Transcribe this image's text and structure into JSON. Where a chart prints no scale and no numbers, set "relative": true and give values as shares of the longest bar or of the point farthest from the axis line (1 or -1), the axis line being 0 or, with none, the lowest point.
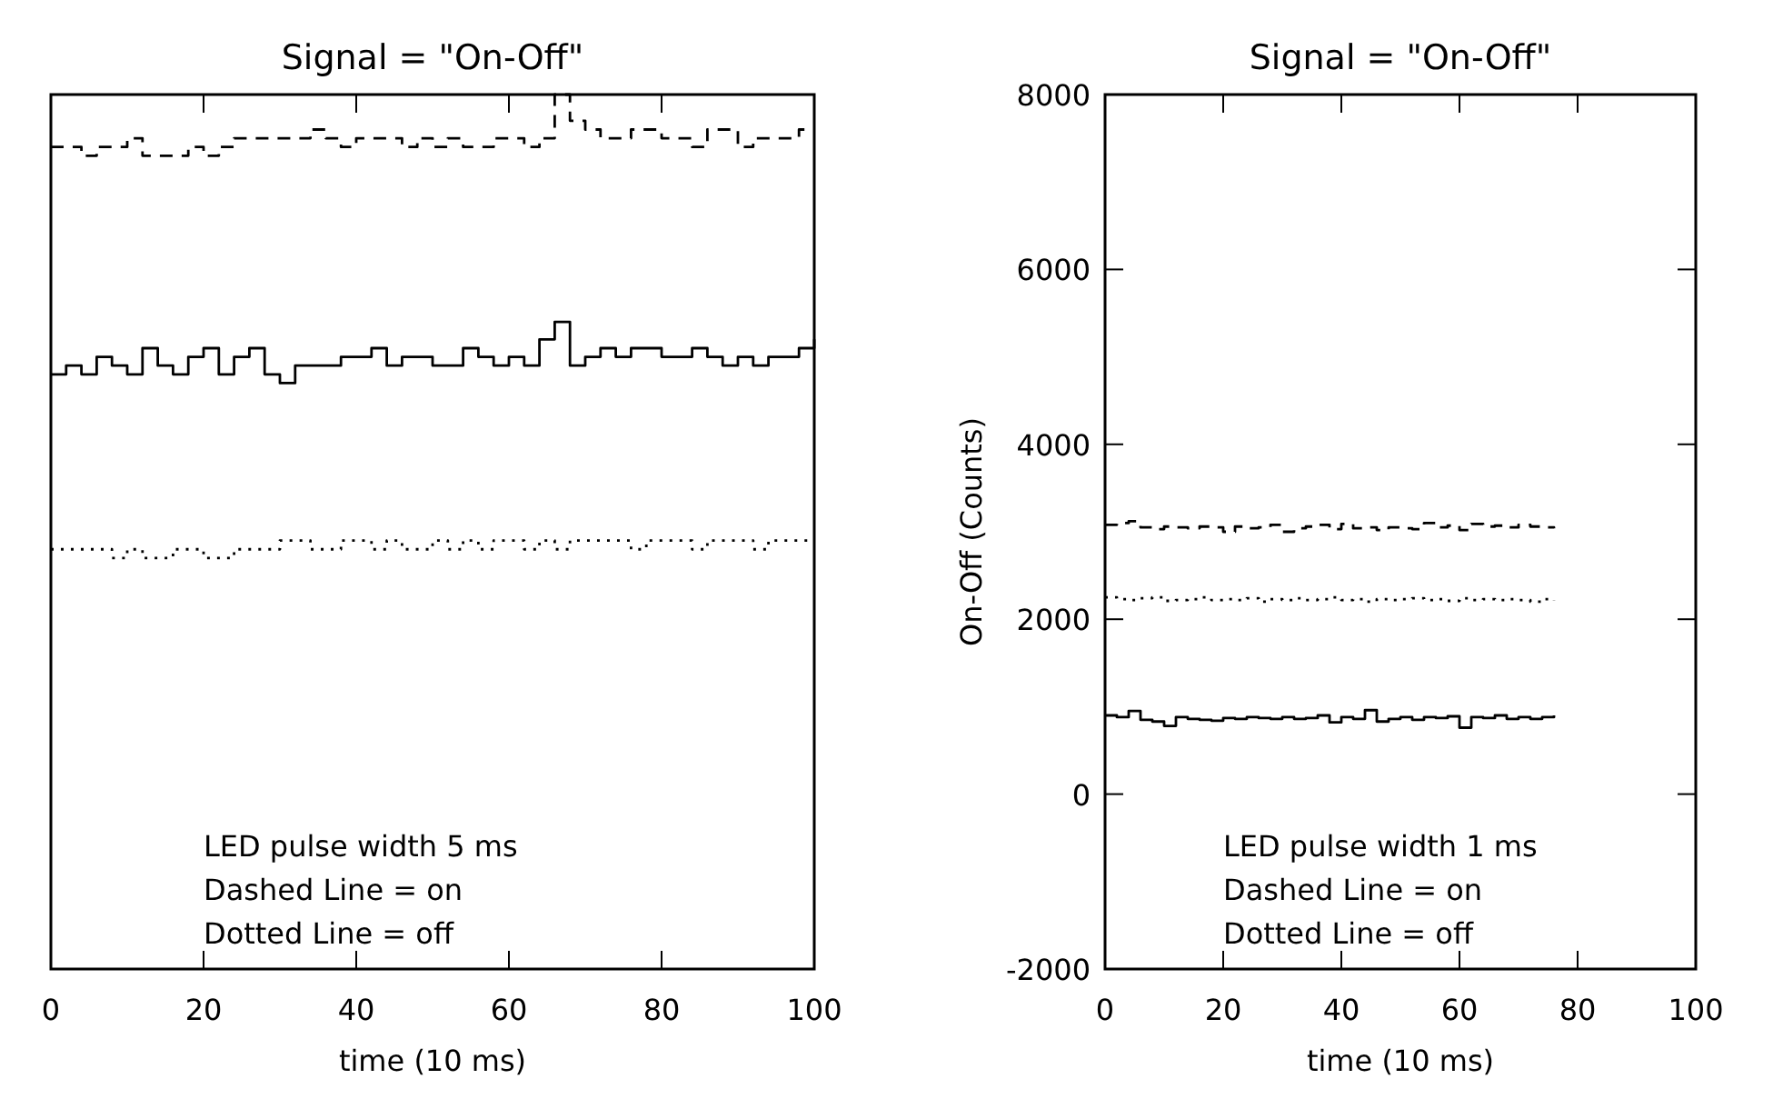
{
  "chart_data": [
    {
      "type": "step",
      "title": "Signal = \"On-Off\"",
      "xlabel": "time (10 ms)",
      "relative": true,
      "xlim": [
        0,
        100
      ],
      "xticks": [
        0,
        20,
        40,
        60,
        80,
        100
      ],
      "tick_labels": "x",
      "x": [
        0,
        2,
        4,
        6,
        8,
        10,
        12,
        14,
        16,
        18,
        20,
        22,
        24,
        26,
        28,
        30,
        32,
        34,
        36,
        38,
        40,
        42,
        44,
        46,
        48,
        50,
        52,
        54,
        56,
        58,
        60,
        62,
        64,
        66,
        68,
        70,
        72,
        74,
        76,
        78,
        80,
        82,
        84,
        86,
        88,
        90,
        92,
        94,
        96,
        98,
        100
      ],
      "series": [
        {
          "color": "#000000",
          "line_style": "dashed",
          "values": [
            0.94,
            0.94,
            0.93,
            0.94,
            0.94,
            0.95,
            0.93,
            0.93,
            0.93,
            0.94,
            0.93,
            0.94,
            0.95,
            0.95,
            0.95,
            0.95,
            0.95,
            0.96,
            0.95,
            0.94,
            0.95,
            0.95,
            0.95,
            0.94,
            0.95,
            0.94,
            0.95,
            0.94,
            0.94,
            0.95,
            0.95,
            0.94,
            0.95,
            1.0,
            0.97,
            0.96,
            0.95,
            0.95,
            0.96,
            0.96,
            0.95,
            0.95,
            0.94,
            0.96,
            0.96,
            0.94,
            0.95,
            0.95,
            0.95,
            0.96,
            0.96
          ]
        },
        {
          "color": "#000000",
          "line_style": "solid",
          "values": [
            0.68,
            0.69,
            0.68,
            0.7,
            0.69,
            0.68,
            0.71,
            0.69,
            0.68,
            0.7,
            0.71,
            0.68,
            0.7,
            0.71,
            0.68,
            0.67,
            0.69,
            0.69,
            0.69,
            0.7,
            0.7,
            0.71,
            0.69,
            0.7,
            0.7,
            0.69,
            0.69,
            0.71,
            0.7,
            0.69,
            0.7,
            0.69,
            0.72,
            0.74,
            0.69,
            0.7,
            0.71,
            0.7,
            0.71,
            0.71,
            0.7,
            0.7,
            0.71,
            0.7,
            0.69,
            0.7,
            0.69,
            0.7,
            0.7,
            0.71,
            0.72
          ]
        },
        {
          "color": "#000000",
          "line_style": "dotted",
          "values": [
            0.48,
            0.48,
            0.48,
            0.48,
            0.47,
            0.48,
            0.47,
            0.47,
            0.48,
            0.48,
            0.47,
            0.47,
            0.48,
            0.48,
            0.48,
            0.49,
            0.49,
            0.48,
            0.48,
            0.49,
            0.49,
            0.48,
            0.49,
            0.48,
            0.48,
            0.49,
            0.48,
            0.49,
            0.48,
            0.49,
            0.49,
            0.48,
            0.49,
            0.48,
            0.49,
            0.49,
            0.49,
            0.49,
            0.48,
            0.49,
            0.49,
            0.49,
            0.48,
            0.49,
            0.49,
            0.49,
            0.48,
            0.49,
            0.49,
            0.49,
            0.49
          ]
        }
      ],
      "annotations": [
        "LED pulse width 5 ms",
        "Dashed Line = on",
        "Dotted Line = off"
      ]
    },
    {
      "type": "step",
      "title": "Signal = \"On-Off\"",
      "xlabel": "time (10 ms)",
      "ylabel": "On-Off (Counts)",
      "xlim": [
        0,
        100
      ],
      "xticks": [
        0,
        20,
        40,
        60,
        80,
        100
      ],
      "ylim": [
        -2000,
        8000
      ],
      "yticks": [
        -2000,
        0,
        2000,
        4000,
        6000,
        8000
      ],
      "x": [
        0,
        2,
        4,
        6,
        8,
        10,
        12,
        14,
        16,
        18,
        20,
        22,
        24,
        26,
        28,
        30,
        32,
        34,
        36,
        38,
        40,
        42,
        44,
        46,
        48,
        50,
        52,
        54,
        56,
        58,
        60,
        62,
        64,
        66,
        68,
        70,
        72,
        74,
        76
      ],
      "series": [
        {
          "color": "#000000",
          "line_style": "dashed",
          "values": [
            3080,
            3100,
            3120,
            3050,
            3030,
            3060,
            3050,
            3040,
            3060,
            3050,
            3000,
            3060,
            3040,
            3050,
            3080,
            3000,
            3040,
            3060,
            3080,
            3030,
            3090,
            3040,
            3050,
            3020,
            3050,
            3040,
            3030,
            3100,
            3050,
            3070,
            3020,
            3090,
            3060,
            3070,
            3050,
            3080,
            3060,
            3050,
            3040
          ]
        },
        {
          "color": "#000000",
          "line_style": "solid",
          "values": [
            900,
            880,
            950,
            850,
            830,
            780,
            880,
            860,
            850,
            840,
            870,
            860,
            880,
            870,
            860,
            880,
            860,
            870,
            900,
            820,
            880,
            860,
            960,
            830,
            860,
            880,
            850,
            880,
            870,
            890,
            760,
            880,
            870,
            900,
            860,
            880,
            860,
            880,
            900
          ]
        },
        {
          "color": "#000000",
          "line_style": "dotted",
          "values": [
            2250,
            2230,
            2220,
            2240,
            2250,
            2210,
            2220,
            2230,
            2250,
            2220,
            2230,
            2220,
            2240,
            2200,
            2230,
            2220,
            2240,
            2220,
            2230,
            2250,
            2220,
            2230,
            2200,
            2230,
            2220,
            2230,
            2240,
            2220,
            2230,
            2210,
            2240,
            2220,
            2230,
            2220,
            2230,
            2220,
            2200,
            2230,
            2210
          ]
        }
      ],
      "annotations": [
        "LED pulse width 1 ms",
        "Dashed Line = on",
        "Dotted Line = off"
      ]
    }
  ]
}
